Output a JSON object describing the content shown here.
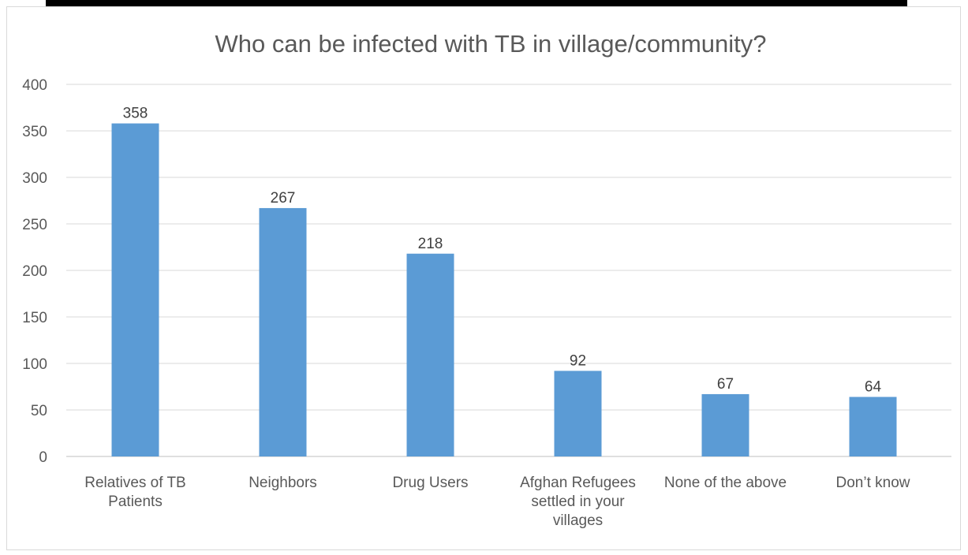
{
  "chart_data": {
    "type": "bar",
    "title": "Who can be infected with TB in village/community?",
    "categories": [
      [
        "Relatives of TB",
        "Patients"
      ],
      [
        "Neighbors"
      ],
      [
        "Drug Users"
      ],
      [
        "Afghan Refugees",
        "settled in your",
        "villages"
      ],
      [
        "None of the above"
      ],
      [
        "Don’t know"
      ]
    ],
    "values": [
      358,
      267,
      218,
      92,
      67,
      64
    ],
    "yticks": [
      0,
      50,
      100,
      150,
      200,
      250,
      300,
      350,
      400
    ],
    "ylim": [
      0,
      400
    ],
    "grid": true,
    "bar_color": "#5b9bd5",
    "xlabel": "",
    "ylabel": ""
  }
}
